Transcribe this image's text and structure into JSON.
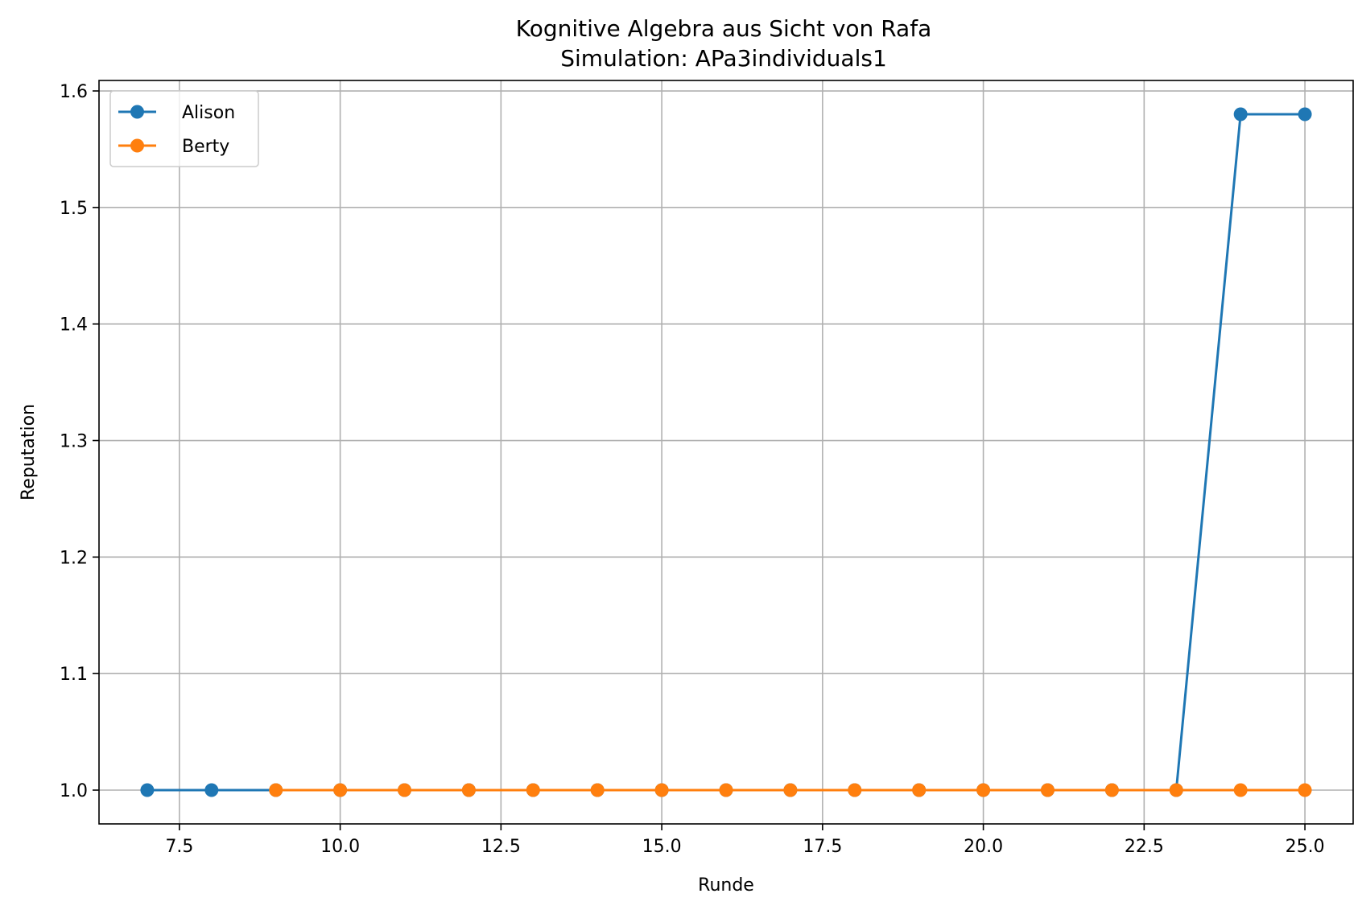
{
  "chart_data": {
    "type": "line",
    "title": "Kognitive Algebra aus Sicht von Rafa",
    "subtitle": "Simulation: APa3individuals1",
    "xlabel": "Runde",
    "ylabel": "Reputation",
    "xlim": [
      6.25,
      25.75
    ],
    "ylim": [
      0.971,
      1.609
    ],
    "xticks": [
      "7.5",
      "10.0",
      "12.5",
      "15.0",
      "17.5",
      "20.0",
      "22.5",
      "25.0"
    ],
    "yticks": [
      "1.0",
      "1.1",
      "1.2",
      "1.3",
      "1.4",
      "1.5",
      "1.6"
    ],
    "grid": true,
    "legend_position": "upper-left",
    "series": [
      {
        "name": "Alison",
        "color": "#1f77b4",
        "x": [
          7,
          8,
          9,
          10,
          11,
          12,
          13,
          14,
          15,
          16,
          17,
          18,
          19,
          20,
          21,
          22,
          23,
          24,
          25
        ],
        "y": [
          1.0,
          1.0,
          1.0,
          1.0,
          1.0,
          1.0,
          1.0,
          1.0,
          1.0,
          1.0,
          1.0,
          1.0,
          1.0,
          1.0,
          1.0,
          1.0,
          1.0,
          1.58,
          1.58
        ]
      },
      {
        "name": "Berty",
        "color": "#ff7f0e",
        "x": [
          9,
          10,
          11,
          12,
          13,
          14,
          15,
          16,
          17,
          18,
          19,
          20,
          21,
          22,
          23,
          24,
          25
        ],
        "y": [
          1.0,
          1.0,
          1.0,
          1.0,
          1.0,
          1.0,
          1.0,
          1.0,
          1.0,
          1.0,
          1.0,
          1.0,
          1.0,
          1.0,
          1.0,
          1.0,
          1.0
        ]
      }
    ]
  }
}
